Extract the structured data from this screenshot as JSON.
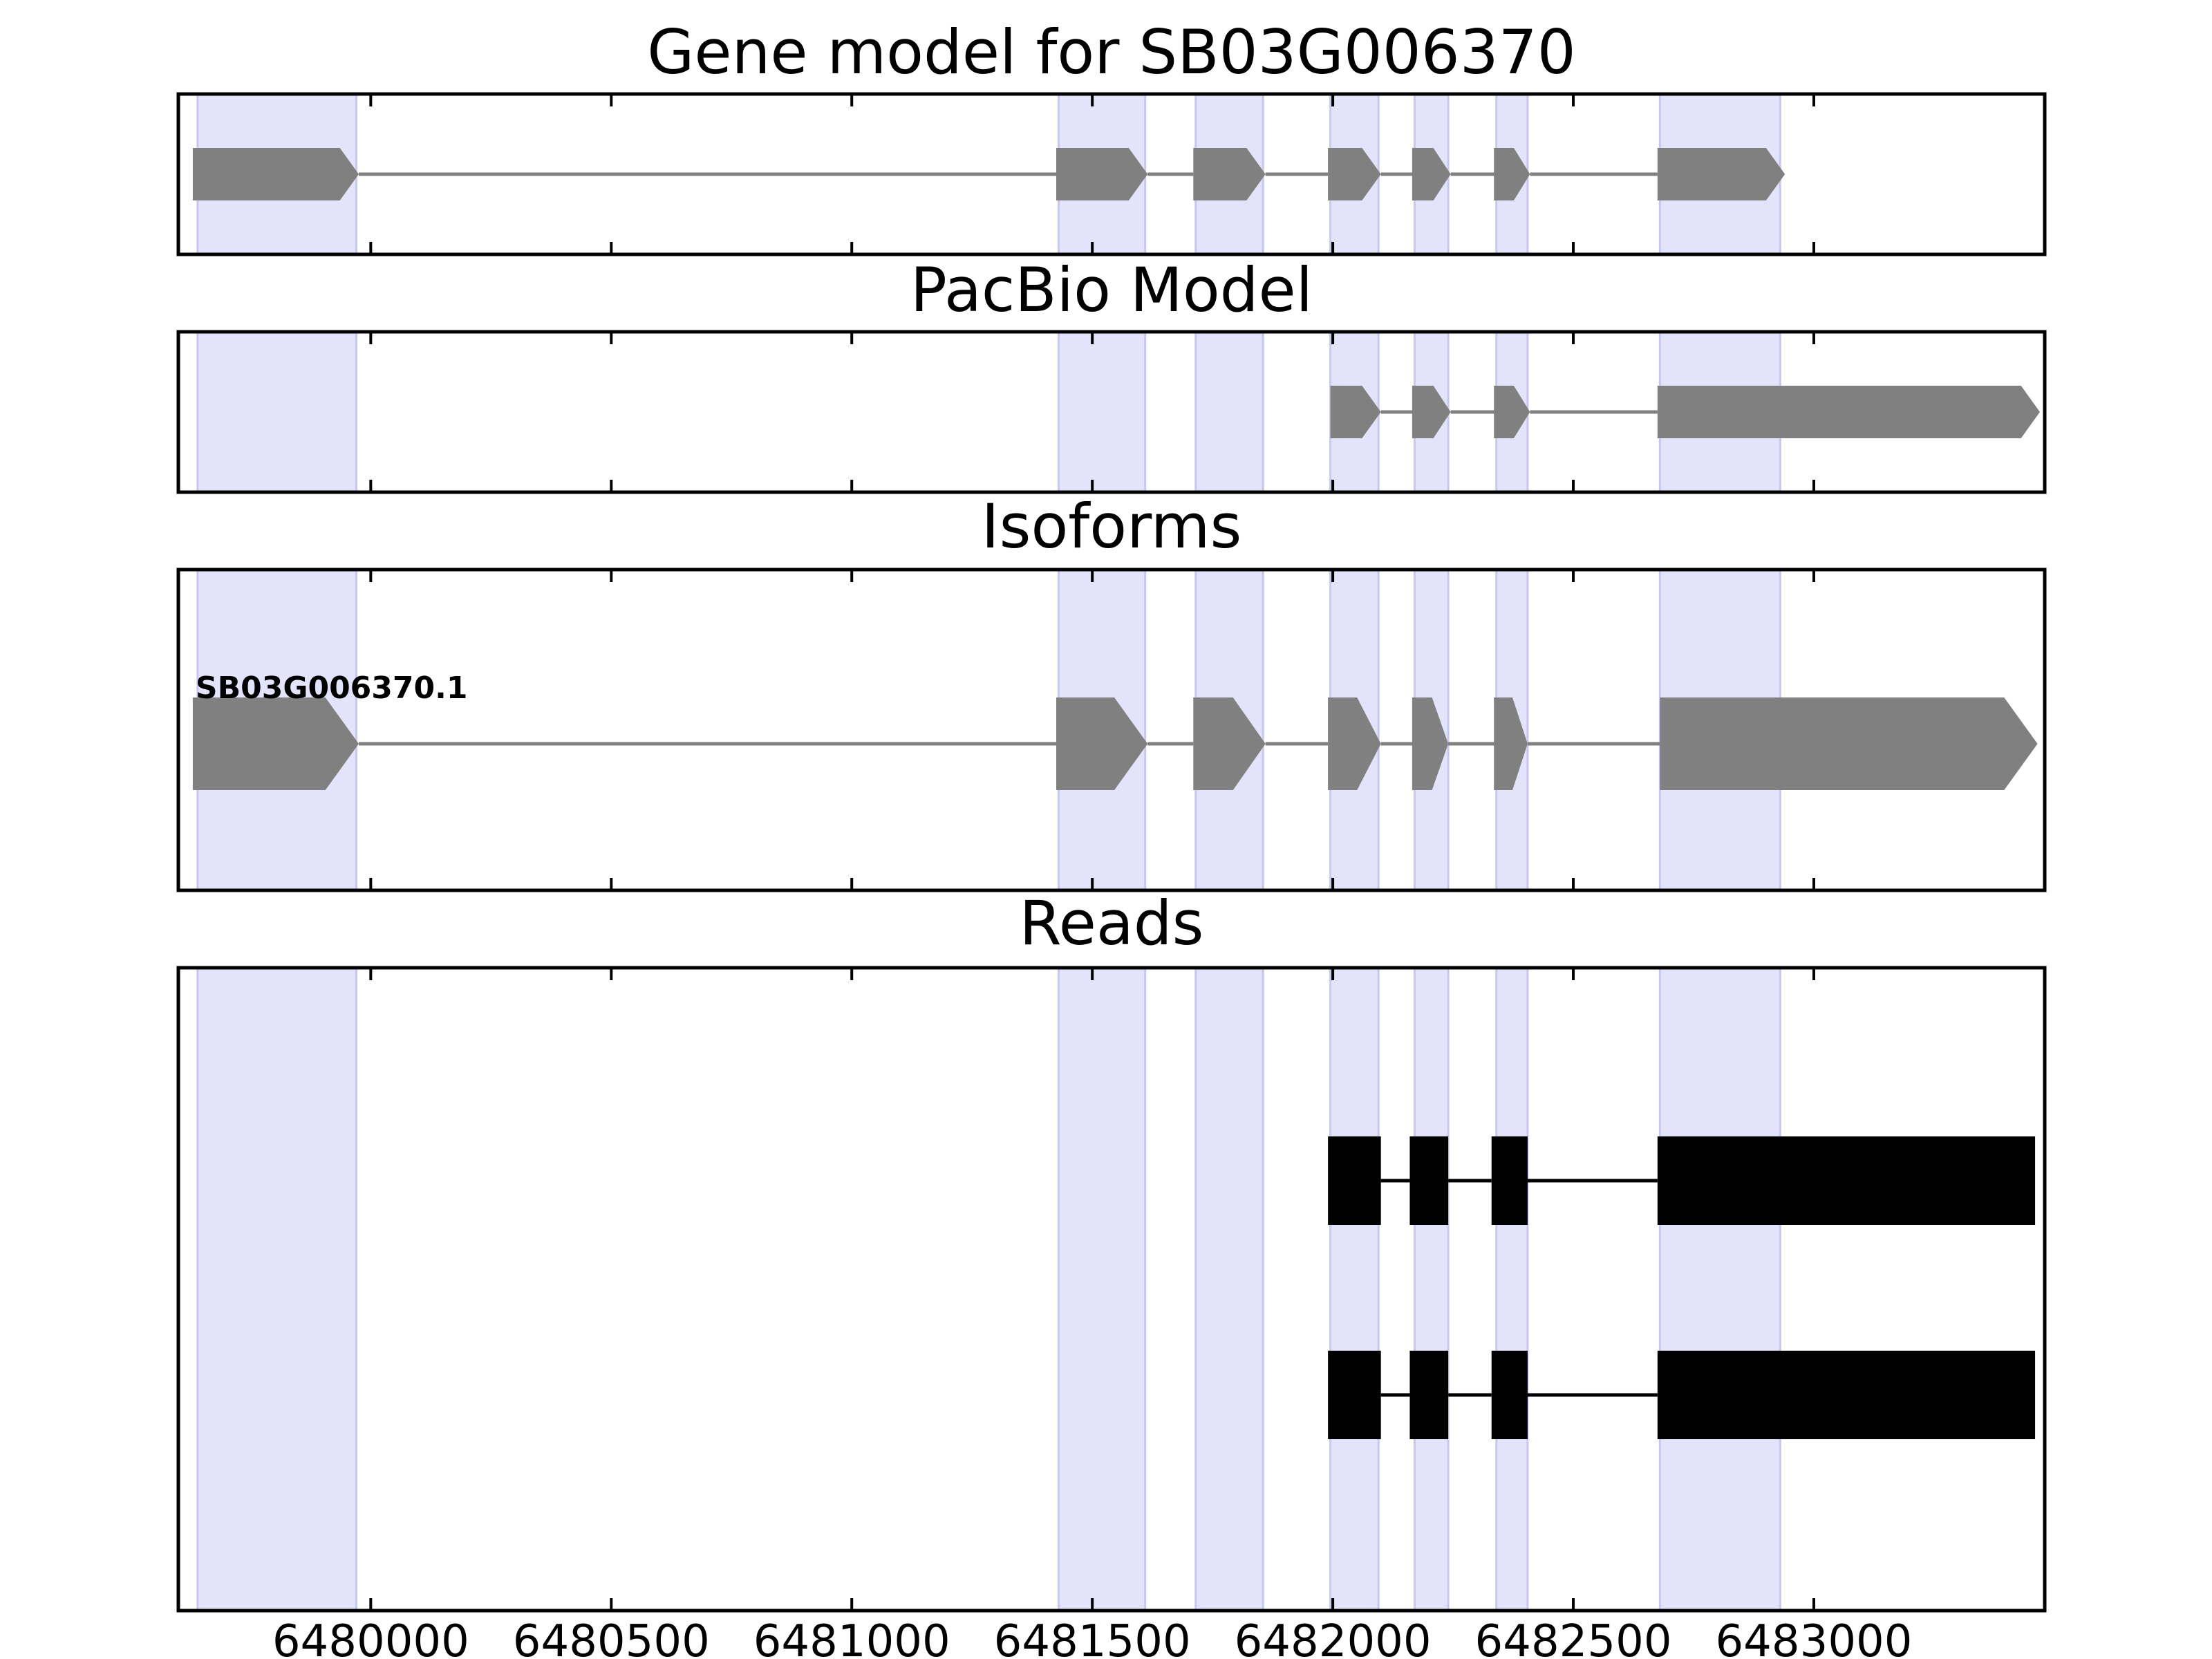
{
  "chart_data": {
    "type": "gene_track",
    "xlim": [
      6479600,
      6483480
    ],
    "xticks": [
      6480000,
      6480500,
      6481000,
      6481500,
      6482000,
      6482500,
      6483000
    ],
    "xtick_labels": [
      "6480000",
      "6480500",
      "6481000",
      "6481500",
      "6482000",
      "6482500",
      "6483000"
    ],
    "highlight_color": "#e3e3fb",
    "feature_color": "#808080",
    "read_color": "#000000",
    "highlight_regions": [
      [
        6479640,
        6479970
      ],
      [
        6481430,
        6481610
      ],
      [
        6481715,
        6481855
      ],
      [
        6481995,
        6482095
      ],
      [
        6482170,
        6482240
      ],
      [
        6482340,
        6482405
      ],
      [
        6482680,
        6482930
      ]
    ],
    "panels": [
      {
        "id": "gene-model",
        "title": "Gene model for SB03G006370",
        "tracks": [
          {
            "label": "",
            "style": "arrow",
            "exons": [
              [
                6479630,
                6479975
              ],
              [
                6481425,
                6481615
              ],
              [
                6481710,
                6481860
              ],
              [
                6481990,
                6482100
              ],
              [
                6482165,
                6482245
              ],
              [
                6482335,
                6482410
              ],
              [
                6482675,
                6482940
              ]
            ]
          }
        ]
      },
      {
        "id": "pacbio-model",
        "title": "PacBio Model",
        "tracks": [
          {
            "label": "",
            "style": "arrow",
            "exons": [
              [
                6481995,
                6482100
              ],
              [
                6482165,
                6482245
              ],
              [
                6482335,
                6482410
              ],
              [
                6482675,
                6483470
              ]
            ]
          }
        ]
      },
      {
        "id": "isoforms",
        "title": "Isoforms",
        "tracks": [
          {
            "label": "SB03G006370.1",
            "style": "arrow",
            "exons": [
              [
                6479630,
                6479975
              ],
              [
                6481425,
                6481615
              ],
              [
                6481710,
                6481860
              ],
              [
                6481990,
                6482100
              ],
              [
                6482165,
                6482240
              ],
              [
                6482335,
                6482405
              ],
              [
                6482680,
                6483465
              ]
            ]
          }
        ]
      },
      {
        "id": "reads",
        "title": "Reads",
        "tracks": [
          {
            "label": "",
            "style": "box",
            "exons": [
              [
                6481990,
                6482100
              ],
              [
                6482160,
                6482240
              ],
              [
                6482330,
                6482405
              ],
              [
                6482675,
                6483460
              ]
            ]
          },
          {
            "label": "",
            "style": "box",
            "exons": [
              [
                6481990,
                6482100
              ],
              [
                6482160,
                6482240
              ],
              [
                6482330,
                6482405
              ],
              [
                6482675,
                6483460
              ]
            ]
          }
        ]
      }
    ]
  }
}
